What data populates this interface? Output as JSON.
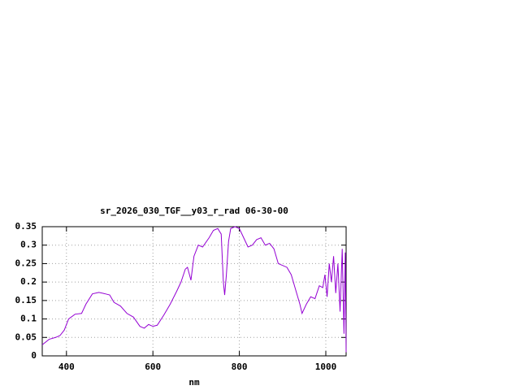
{
  "chart_data": {
    "type": "line",
    "title": "sr_2026_030_TGF__y03_r_rad 06-30-00",
    "x_label": "nm",
    "x": [
      344,
      360,
      375,
      385,
      395,
      405,
      420,
      435,
      445,
      460,
      475,
      490,
      500,
      510,
      525,
      540,
      555,
      570,
      580,
      590,
      600,
      610,
      625,
      640,
      655,
      665,
      675,
      680,
      688,
      695,
      705,
      715,
      730,
      740,
      750,
      758,
      763,
      766,
      770,
      775,
      780,
      790,
      800,
      810,
      820,
      830,
      840,
      850,
      860,
      870,
      880,
      890,
      900,
      910,
      920,
      930,
      940,
      945,
      955,
      965,
      975,
      985,
      993,
      998,
      1003,
      1008,
      1013,
      1018,
      1023,
      1028,
      1033,
      1038,
      1042,
      1045,
      1047
    ],
    "series": [
      {
        "color": "#9400d3",
        "values": [
          0.03,
          0.045,
          0.05,
          0.055,
          0.07,
          0.1,
          0.113,
          0.115,
          0.14,
          0.168,
          0.172,
          0.168,
          0.165,
          0.145,
          0.135,
          0.115,
          0.105,
          0.08,
          0.075,
          0.085,
          0.08,
          0.083,
          0.11,
          0.14,
          0.175,
          0.2,
          0.235,
          0.24,
          0.205,
          0.27,
          0.3,
          0.295,
          0.32,
          0.34,
          0.345,
          0.33,
          0.2,
          0.165,
          0.22,
          0.31,
          0.345,
          0.35,
          0.345,
          0.32,
          0.295,
          0.3,
          0.315,
          0.32,
          0.3,
          0.305,
          0.29,
          0.25,
          0.245,
          0.24,
          0.22,
          0.18,
          0.14,
          0.115,
          0.14,
          0.16,
          0.155,
          0.19,
          0.185,
          0.22,
          0.16,
          0.25,
          0.2,
          0.27,
          0.17,
          0.25,
          0.12,
          0.29,
          0.06,
          0.28,
          0.01
        ]
      }
    ],
    "xlim": [
      344,
      1047
    ],
    "xticks": [
      400,
      600,
      800,
      1000
    ],
    "ylim": [
      0,
      0.35
    ],
    "yticks": [
      0,
      0.05,
      0.1,
      0.15,
      0.2,
      0.25,
      0.3,
      0.35
    ],
    "grid": true
  }
}
